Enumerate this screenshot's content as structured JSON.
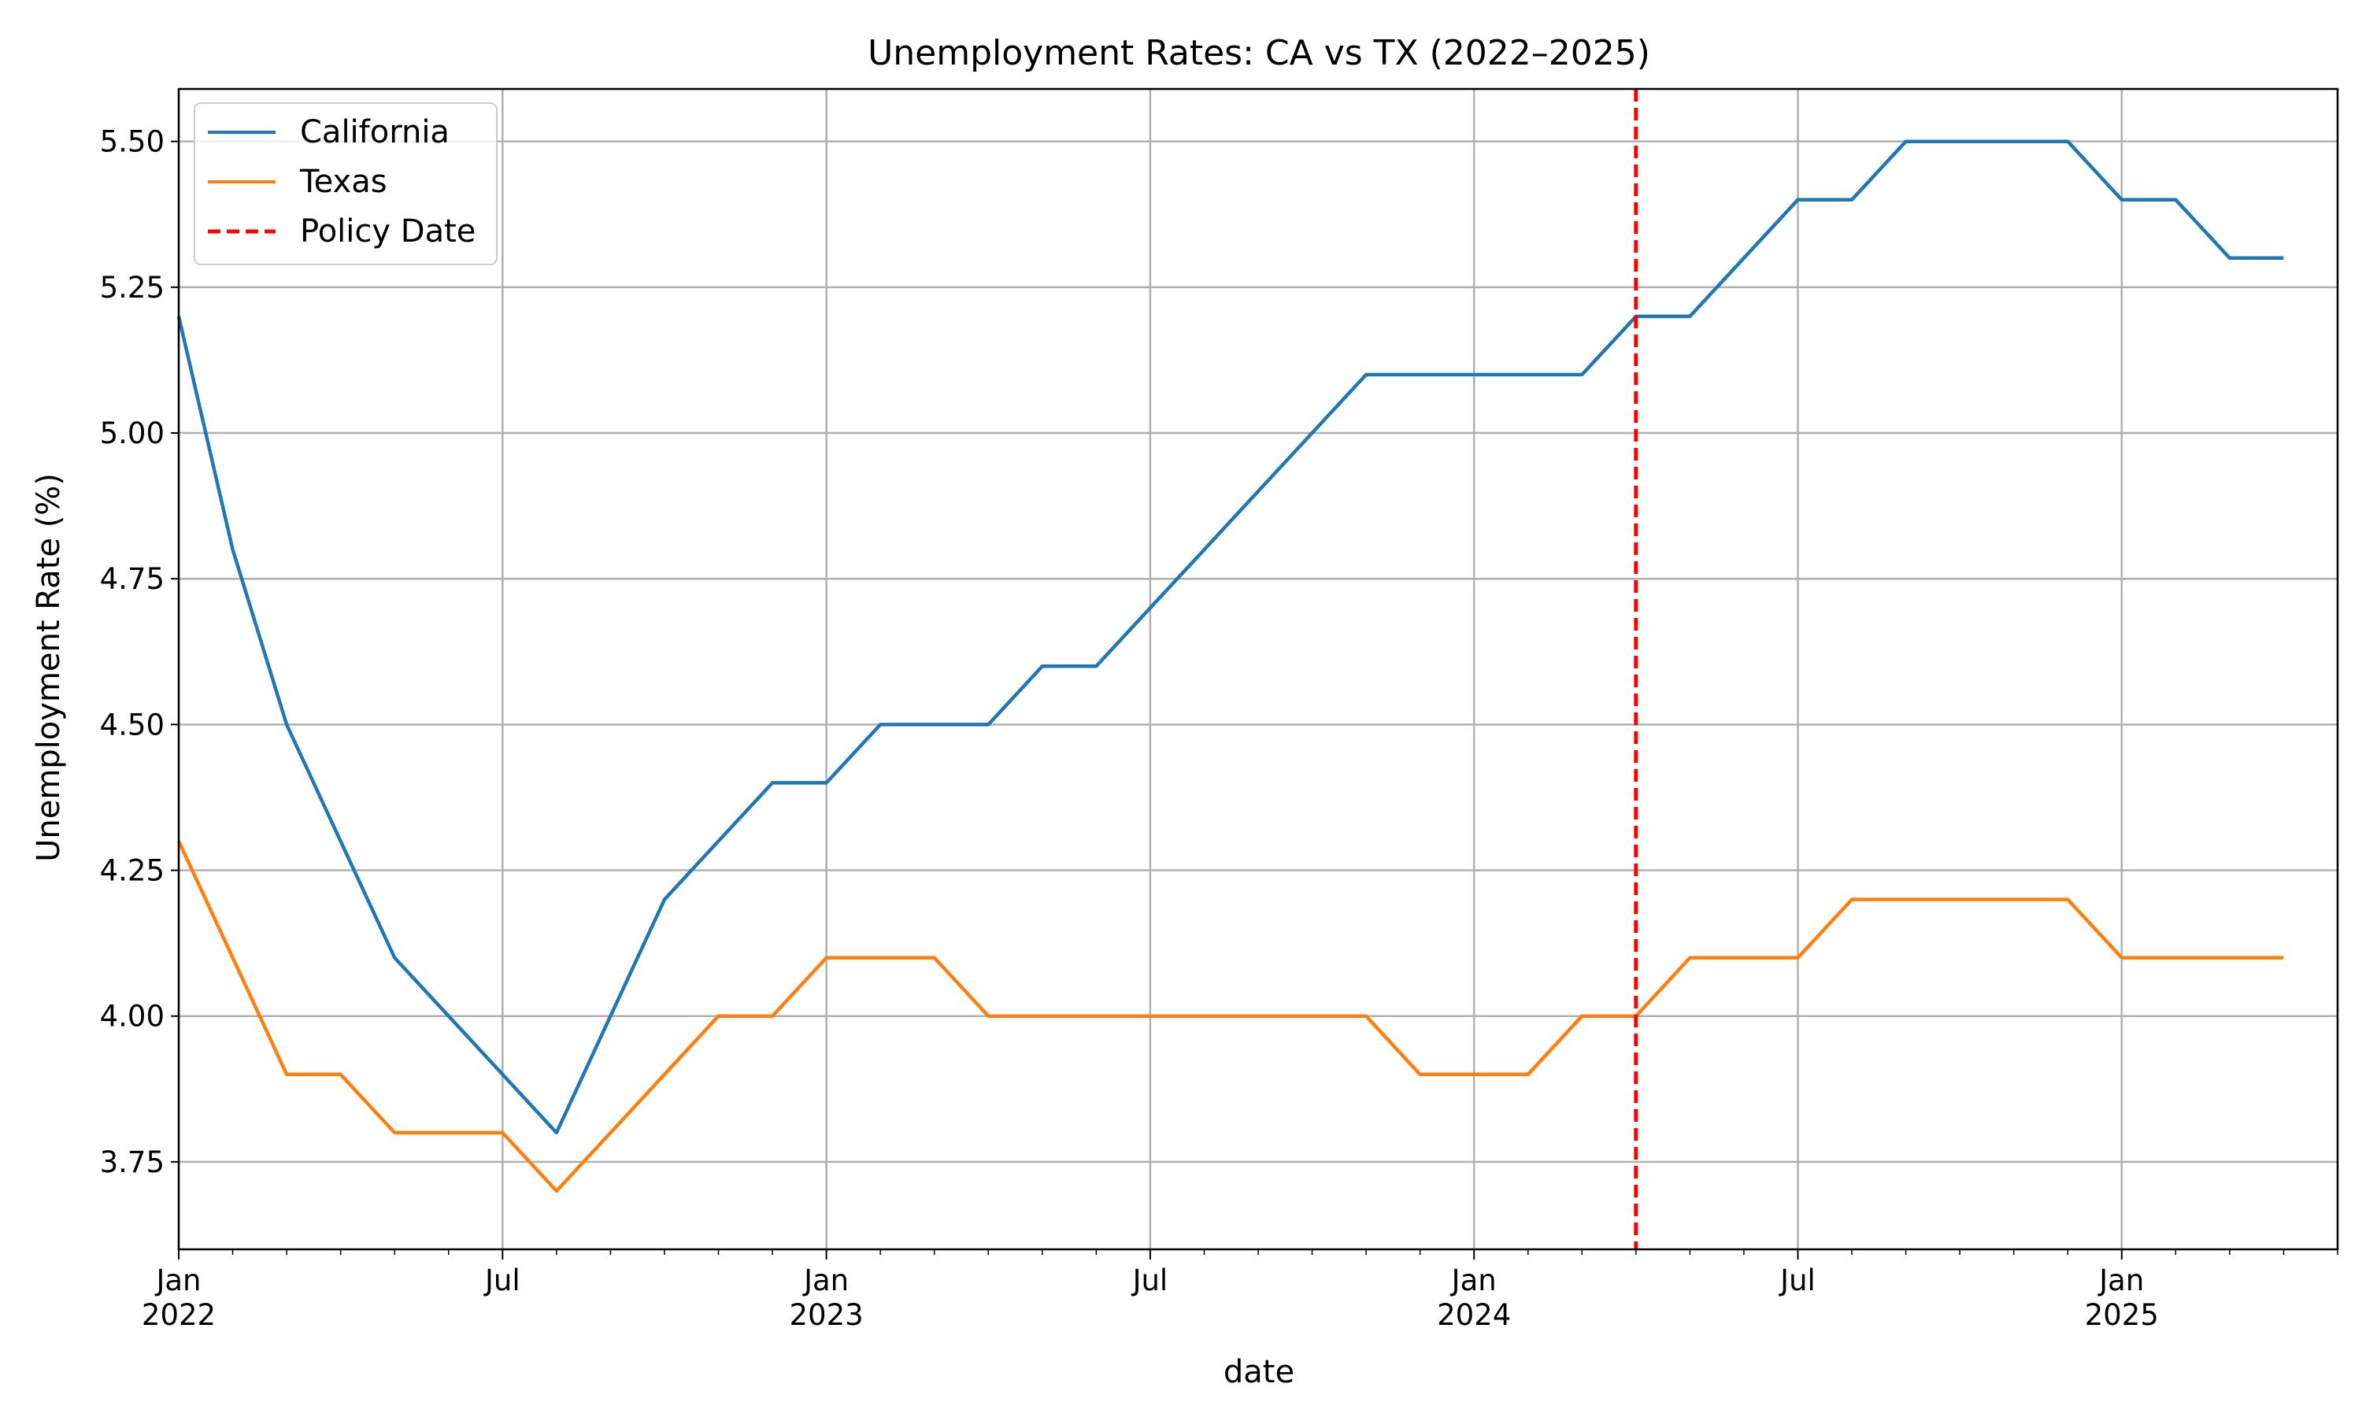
{
  "chart_data": {
    "type": "line",
    "title": "Unemployment Rates: CA vs TX (2022–2025)",
    "xlabel": "date",
    "ylabel": "Unemployment Rate (%)",
    "x": [
      "2022-01",
      "2022-02",
      "2022-03",
      "2022-04",
      "2022-05",
      "2022-06",
      "2022-07",
      "2022-08",
      "2022-09",
      "2022-10",
      "2022-11",
      "2022-12",
      "2023-01",
      "2023-02",
      "2023-03",
      "2023-04",
      "2023-05",
      "2023-06",
      "2023-07",
      "2023-08",
      "2023-09",
      "2023-10",
      "2023-11",
      "2023-12",
      "2024-01",
      "2024-02",
      "2024-03",
      "2024-04",
      "2024-05",
      "2024-06",
      "2024-07",
      "2024-08",
      "2024-09",
      "2024-10",
      "2024-11",
      "2024-12",
      "2025-01",
      "2025-02",
      "2025-03",
      "2025-04"
    ],
    "series": [
      {
        "name": "California",
        "color": "#1f77b4",
        "values": [
          5.2,
          4.8,
          4.5,
          4.3,
          4.1,
          4.0,
          3.9,
          3.8,
          4.0,
          4.2,
          4.3,
          4.4,
          4.4,
          4.5,
          4.5,
          4.5,
          4.6,
          4.6,
          4.7,
          4.8,
          4.9,
          5.0,
          5.1,
          5.1,
          5.1,
          5.1,
          5.1,
          5.2,
          5.2,
          5.3,
          5.4,
          5.4,
          5.5,
          5.5,
          5.5,
          5.5,
          5.4,
          5.4,
          5.3,
          5.3
        ]
      },
      {
        "name": "Texas",
        "color": "#ff7f0e",
        "values": [
          4.3,
          4.1,
          3.9,
          3.9,
          3.8,
          3.8,
          3.8,
          3.7,
          3.8,
          3.9,
          4.0,
          4.0,
          4.1,
          4.1,
          4.1,
          4.0,
          4.0,
          4.0,
          4.0,
          4.0,
          4.0,
          4.0,
          4.0,
          3.9,
          3.9,
          3.9,
          4.0,
          4.0,
          4.1,
          4.1,
          4.1,
          4.2,
          4.2,
          4.2,
          4.2,
          4.2,
          4.1,
          4.1,
          4.1,
          4.1
        ]
      }
    ],
    "vline": {
      "name": "Policy Date",
      "x": "2024-04",
      "color": "#ff0000",
      "style": "dashed"
    },
    "xlim": [
      "2022-01",
      "2025-05"
    ],
    "ylim": [
      3.6,
      5.59
    ],
    "yticks": [
      "3.75",
      "4.00",
      "4.25",
      "4.50",
      "4.75",
      "5.00",
      "5.25",
      "5.50"
    ],
    "xticks": [
      {
        "x": "2022-01",
        "label": "Jan",
        "year": "2022"
      },
      {
        "x": "2022-07",
        "label": "Jul",
        "year": ""
      },
      {
        "x": "2023-01",
        "label": "Jan",
        "year": "2023"
      },
      {
        "x": "2023-07",
        "label": "Jul",
        "year": ""
      },
      {
        "x": "2024-01",
        "label": "Jan",
        "year": "2024"
      },
      {
        "x": "2024-07",
        "label": "Jul",
        "year": ""
      },
      {
        "x": "2025-01",
        "label": "Jan",
        "year": "2025"
      }
    ],
    "grid": true,
    "legend_position": "upper left"
  }
}
